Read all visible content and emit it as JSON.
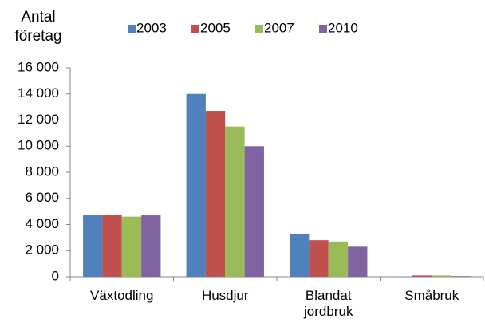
{
  "chart_data": {
    "type": "bar",
    "y_axis_label": "Antal företag",
    "categories": [
      "Växtodling",
      "Husdjur",
      "Blandat jordbruk",
      "Småbruk"
    ],
    "series": [
      {
        "name": "2003",
        "color": "#4f81bd",
        "values": [
          4700,
          14000,
          3300,
          20
        ]
      },
      {
        "name": "2005",
        "color": "#c0504d",
        "values": [
          4750,
          12700,
          2800,
          100
        ]
      },
      {
        "name": "2007",
        "color": "#9bbb59",
        "values": [
          4600,
          11500,
          2700,
          100
        ]
      },
      {
        "name": "2010",
        "color": "#8064a2",
        "values": [
          4700,
          10000,
          2300,
          50
        ]
      }
    ],
    "ylim": [
      0,
      16000
    ],
    "yticks": [
      {
        "value": 0,
        "label": "0"
      },
      {
        "value": 2000,
        "label": "2 000"
      },
      {
        "value": 4000,
        "label": "4 000"
      },
      {
        "value": 6000,
        "label": "6 000"
      },
      {
        "value": 8000,
        "label": "8 000"
      },
      {
        "value": 10000,
        "label": "10 000"
      },
      {
        "value": 12000,
        "label": "12 000"
      },
      {
        "value": 14000,
        "label": "14 000"
      },
      {
        "value": 16000,
        "label": "16 000"
      }
    ],
    "grid": false,
    "legend": "top"
  }
}
